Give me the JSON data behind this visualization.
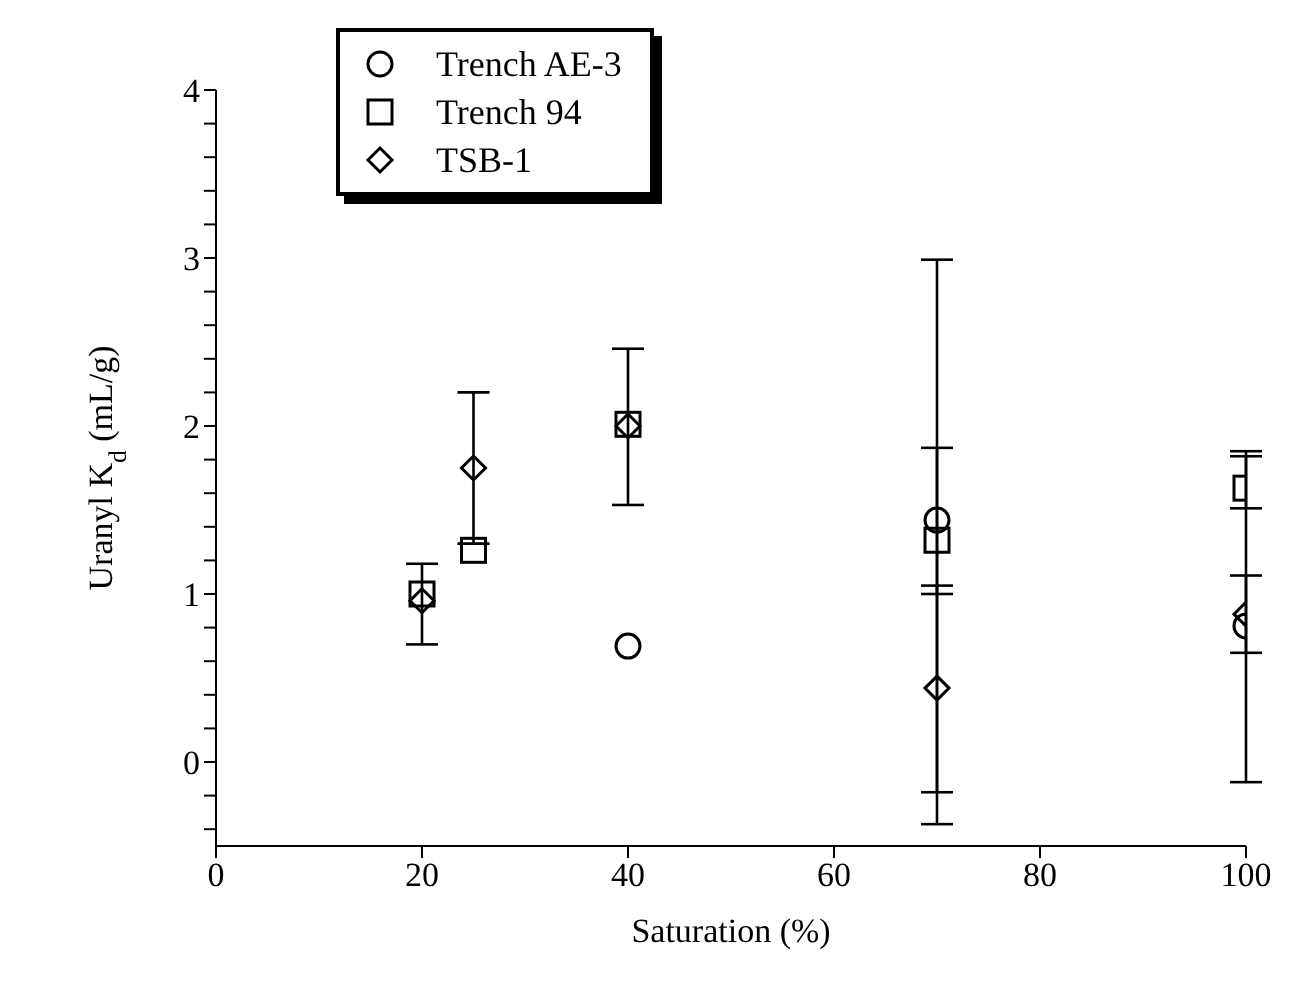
{
  "chart_data": {
    "type": "scatter",
    "xlabel": "Saturation (%)",
    "ylabel": "Uranyl K$_{d}$ (mL/g)",
    "xlim": [
      0,
      100
    ],
    "xticks": [
      0,
      20,
      40,
      60,
      80,
      100
    ],
    "ylim": [
      -0.5,
      4
    ],
    "yticks": [
      {
        "value": -0.4,
        "label": null
      },
      {
        "value": -0.2,
        "label": null
      },
      0,
      {
        "value": 0.2,
        "label": null
      },
      {
        "value": 0.4,
        "label": null
      },
      {
        "value": 0.6,
        "label": null
      },
      {
        "value": 0.8,
        "label": null
      },
      1,
      {
        "value": 1.2,
        "label": null
      },
      {
        "value": 1.4,
        "label": null
      },
      {
        "value": 1.6,
        "label": null
      },
      {
        "value": 1.8,
        "label": null
      },
      2,
      {
        "value": 2.2,
        "label": null
      },
      {
        "value": 2.4,
        "label": null
      },
      {
        "value": 2.6,
        "label": null
      },
      {
        "value": 2.8,
        "label": null
      },
      3,
      {
        "value": 3.2,
        "label": null
      },
      {
        "value": 3.4,
        "label": null
      },
      {
        "value": 3.6,
        "label": null
      },
      {
        "value": 3.8,
        "label": null
      },
      4
    ],
    "grid": false,
    "legend": "top left",
    "series": [
      {
        "name": "Trench AE-3",
        "color": "#000000",
        "marker": "circle",
        "x": [
          40,
          70,
          100
        ],
        "values": [
          0.69,
          1.44,
          0.81
        ],
        "errors": [
          null,
          [
            1.0,
            1.87
          ],
          [
            -0.12,
            1.82
          ]
        ]
      },
      {
        "name": "Trench 94",
        "color": "#000000",
        "marker": "square",
        "x": [
          20,
          25,
          40,
          70,
          100
        ],
        "values": [
          1.0,
          1.26,
          2.01,
          1.32,
          1.63
        ],
        "errors": [
          null,
          null,
          null,
          [
            -0.37,
            2.99
          ],
          [
            1.51,
            1.85
          ]
        ]
      },
      {
        "name": "TSB-1",
        "color": "#000000",
        "marker": "diamond",
        "x": [
          20,
          25,
          40,
          70,
          100
        ],
        "values": [
          0.96,
          1.75,
          2.0,
          0.44,
          0.88
        ],
        "errors": [
          [
            0.7,
            1.18
          ],
          [
            1.3,
            2.2
          ],
          [
            1.53,
            2.46
          ],
          [
            -0.18,
            1.05
          ],
          [
            0.65,
            1.11
          ]
        ]
      }
    ]
  }
}
